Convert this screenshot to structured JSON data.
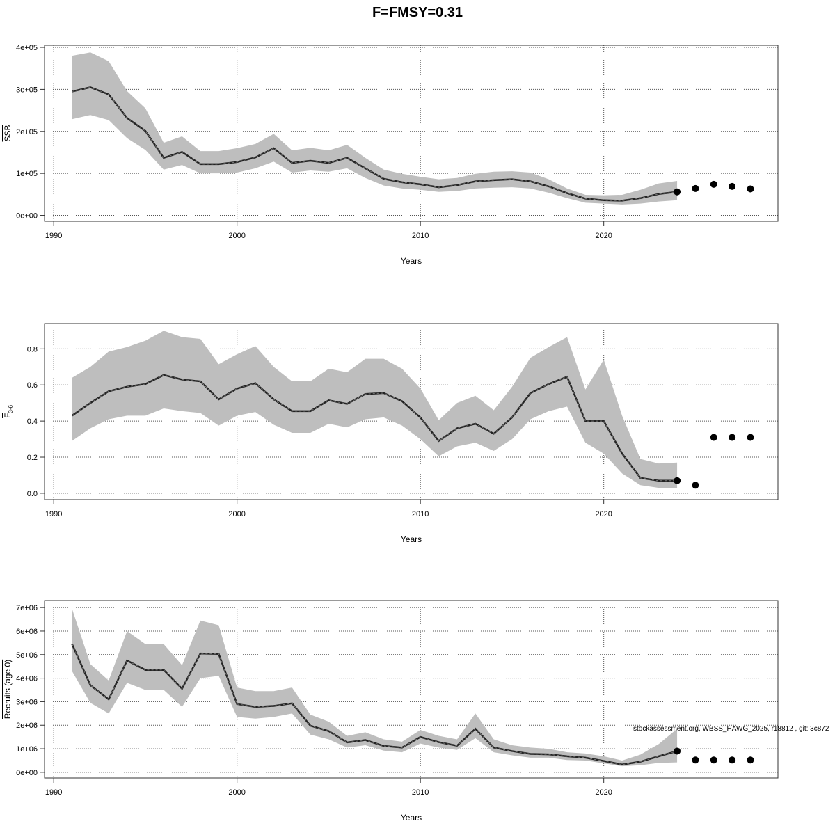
{
  "title": "F=FMSY=0.31",
  "footnote": "stockassessment.org, WBSS_HAWG_2025, r18812 , git: 3c872",
  "colors": {
    "band": "#bebebe",
    "line": "#222222",
    "points": "#000000",
    "grid": "#555555"
  },
  "chart_data": [
    {
      "type": "line",
      "xlabel": "Years",
      "ylabel": "SSB",
      "ylabel_sub": "",
      "xlim": [
        1989.5,
        2029.5
      ],
      "ylim": [
        -14000,
        405000
      ],
      "xticks": [
        1990,
        2000,
        2010,
        2020
      ],
      "yticks": [
        0,
        100000,
        200000,
        300000,
        400000
      ],
      "ytick_labels": [
        "0e+00",
        "1e+05",
        "2e+05",
        "3e+05",
        "4e+05"
      ],
      "grid": true,
      "x": [
        1991,
        1992,
        1993,
        1994,
        1995,
        1996,
        1997,
        1998,
        1999,
        2000,
        2001,
        2002,
        2003,
        2004,
        2005,
        2006,
        2007,
        2008,
        2009,
        2010,
        2011,
        2012,
        2013,
        2014,
        2015,
        2016,
        2017,
        2018,
        2019,
        2020,
        2021,
        2022,
        2023,
        2024
      ],
      "median": [
        295000,
        305000,
        288000,
        232000,
        201000,
        137000,
        151000,
        122000,
        122000,
        127000,
        138000,
        160000,
        125000,
        130000,
        125000,
        137000,
        112000,
        87000,
        79000,
        74000,
        67000,
        72000,
        81000,
        84000,
        86000,
        81000,
        69000,
        53000,
        40000,
        36000,
        35000,
        41000,
        51000,
        56000
      ],
      "upper": [
        380000,
        388000,
        367000,
        296000,
        255000,
        173000,
        188000,
        153000,
        153000,
        160000,
        170000,
        194000,
        155000,
        161000,
        155000,
        168000,
        137000,
        109000,
        99000,
        92000,
        86000,
        89000,
        99000,
        104000,
        105000,
        102000,
        86000,
        64000,
        49000,
        48000,
        49000,
        61000,
        76000,
        82000
      ],
      "lower": [
        229000,
        239000,
        227000,
        184000,
        156000,
        109000,
        120000,
        100000,
        100000,
        102000,
        112000,
        128000,
        102000,
        107000,
        104000,
        112000,
        89000,
        71000,
        64000,
        61000,
        56000,
        58000,
        64000,
        66000,
        67000,
        64000,
        54000,
        41000,
        30000,
        28000,
        26000,
        28000,
        33000,
        36000
      ],
      "forecast": {
        "x": [
          2024,
          2025,
          2026,
          2027,
          2028
        ],
        "y": [
          56000,
          64000,
          74000,
          69000,
          63000
        ]
      }
    },
    {
      "type": "line",
      "xlabel": "Years",
      "ylabel": "F",
      "ylabel_sub": "3-6",
      "xlim": [
        1989.5,
        2029.5
      ],
      "ylim": [
        -0.035,
        0.94
      ],
      "xticks": [
        1990,
        2000,
        2010,
        2020
      ],
      "yticks": [
        0,
        0.2,
        0.4,
        0.6,
        0.8
      ],
      "ytick_labels": [
        "0.0",
        "0.2",
        "0.4",
        "0.6",
        "0.8"
      ],
      "grid": true,
      "x": [
        1991,
        1992,
        1993,
        1994,
        1995,
        1996,
        1997,
        1998,
        1999,
        2000,
        2001,
        2002,
        2003,
        2004,
        2005,
        2006,
        2007,
        2008,
        2009,
        2010,
        2011,
        2012,
        2013,
        2014,
        2015,
        2016,
        2017,
        2018,
        2019,
        2020,
        2021,
        2022,
        2023,
        2024
      ],
      "median": [
        0.43,
        0.5,
        0.565,
        0.59,
        0.605,
        0.655,
        0.63,
        0.62,
        0.52,
        0.58,
        0.61,
        0.52,
        0.455,
        0.455,
        0.515,
        0.495,
        0.55,
        0.555,
        0.51,
        0.42,
        0.29,
        0.36,
        0.385,
        0.33,
        0.42,
        0.555,
        0.605,
        0.645,
        0.4,
        0.4,
        0.22,
        0.085,
        0.07,
        0.07
      ],
      "upper": [
        0.64,
        0.7,
        0.785,
        0.81,
        0.845,
        0.9,
        0.865,
        0.855,
        0.715,
        0.77,
        0.815,
        0.7,
        0.62,
        0.62,
        0.69,
        0.67,
        0.745,
        0.745,
        0.69,
        0.58,
        0.405,
        0.5,
        0.54,
        0.46,
        0.59,
        0.75,
        0.81,
        0.865,
        0.575,
        0.74,
        0.43,
        0.19,
        0.165,
        0.17
      ],
      "lower": [
        0.29,
        0.36,
        0.41,
        0.43,
        0.43,
        0.47,
        0.455,
        0.445,
        0.375,
        0.43,
        0.45,
        0.38,
        0.335,
        0.335,
        0.385,
        0.365,
        0.41,
        0.42,
        0.375,
        0.3,
        0.205,
        0.26,
        0.28,
        0.235,
        0.3,
        0.41,
        0.455,
        0.48,
        0.28,
        0.22,
        0.11,
        0.045,
        0.03,
        0.03
      ],
      "forecast": {
        "x": [
          2024,
          2025,
          2026,
          2027,
          2028
        ],
        "y": [
          0.07,
          0.045,
          0.31,
          0.31,
          0.31
        ]
      }
    },
    {
      "type": "line",
      "xlabel": "Years",
      "ylabel": "Recruits (age 0)",
      "ylabel_sub": "",
      "xlim": [
        1989.5,
        2029.5
      ],
      "ylim": [
        -240000,
        7300000
      ],
      "xticks": [
        1990,
        2000,
        2010,
        2020
      ],
      "yticks": [
        0,
        1000000,
        2000000,
        3000000,
        4000000,
        5000000,
        6000000,
        7000000
      ],
      "ytick_labels": [
        "0e+00",
        "1e+06",
        "2e+06",
        "3e+06",
        "4e+06",
        "5e+06",
        "6e+06",
        "7e+06"
      ],
      "grid": true,
      "x": [
        1991,
        1992,
        1993,
        1994,
        1995,
        1996,
        1997,
        1998,
        1999,
        2000,
        2001,
        2002,
        2003,
        2004,
        2005,
        2006,
        2007,
        2008,
        2009,
        2010,
        2011,
        2012,
        2013,
        2014,
        2015,
        2016,
        2017,
        2018,
        2019,
        2020,
        2021,
        2022,
        2023,
        2024
      ],
      "median": [
        5450000,
        3700000,
        3100000,
        4750000,
        4350000,
        4350000,
        3550000,
        5050000,
        5030000,
        2900000,
        2780000,
        2820000,
        2930000,
        1980000,
        1750000,
        1270000,
        1370000,
        1120000,
        1050000,
        1500000,
        1280000,
        1130000,
        1850000,
        1050000,
        900000,
        780000,
        760000,
        680000,
        620000,
        480000,
        330000,
        450000,
        680000,
        900000
      ],
      "upper": [
        6950000,
        4600000,
        3900000,
        6000000,
        5450000,
        5450000,
        4550000,
        6450000,
        6250000,
        3600000,
        3450000,
        3450000,
        3600000,
        2450000,
        2150000,
        1550000,
        1700000,
        1400000,
        1300000,
        1800000,
        1550000,
        1400000,
        2500000,
        1400000,
        1150000,
        1050000,
        1000000,
        850000,
        800000,
        680000,
        500000,
        750000,
        1200000,
        1850000
      ],
      "lower": [
        4300000,
        2950000,
        2500000,
        3800000,
        3500000,
        3500000,
        2780000,
        4000000,
        4100000,
        2350000,
        2280000,
        2350000,
        2500000,
        1600000,
        1400000,
        1050000,
        1150000,
        920000,
        850000,
        1220000,
        1050000,
        950000,
        1450000,
        850000,
        720000,
        620000,
        620000,
        520000,
        500000,
        380000,
        260000,
        300000,
        400000,
        420000
      ],
      "forecast": {
        "x": [
          2024,
          2025,
          2026,
          2027,
          2028
        ],
        "y": [
          900000,
          520000,
          520000,
          520000,
          520000
        ]
      }
    }
  ]
}
